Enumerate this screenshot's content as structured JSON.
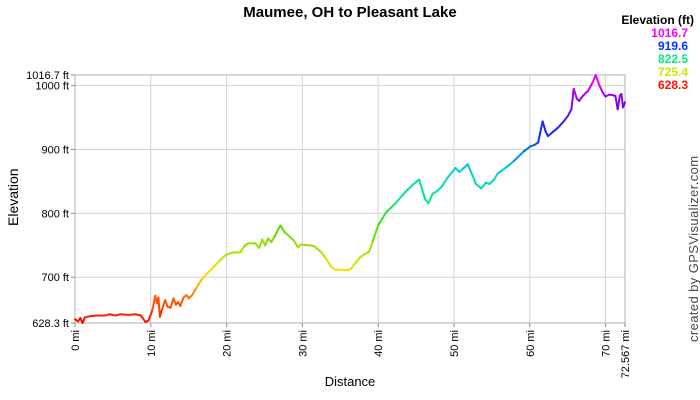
{
  "watermark": {
    "text": "created by GPSVisualizer.com"
  },
  "chart_data": {
    "type": "line",
    "title": "Maumee, OH to Pleasant Lake",
    "xlabel": "Distance",
    "ylabel": "Elevation",
    "x_unit": "mi",
    "y_unit": "ft",
    "xlim": [
      0,
      72.567
    ],
    "ylim": [
      628.3,
      1016.7
    ],
    "grid": true,
    "grid_color": "#d4d4d4",
    "frame_color": "#b0b0b0",
    "tick_color": "#888888",
    "text_color": "#000000",
    "x_ticks": [
      {
        "value": 0,
        "label": "0 mi"
      },
      {
        "value": 10,
        "label": "10 mi"
      },
      {
        "value": 20,
        "label": "20 mi"
      },
      {
        "value": 30,
        "label": "30 mi"
      },
      {
        "value": 40,
        "label": "40 mi"
      },
      {
        "value": 50,
        "label": "50 mi"
      },
      {
        "value": 60,
        "label": "60 mi"
      },
      {
        "value": 70,
        "label": "70 mi"
      },
      {
        "value": 72.567,
        "label": "72.567 mi"
      }
    ],
    "y_ticks": [
      {
        "value": 628.3,
        "label": "628.3 ft"
      },
      {
        "value": 700,
        "label": "700 ft"
      },
      {
        "value": 800,
        "label": "800 ft"
      },
      {
        "value": 900,
        "label": "900 ft"
      },
      {
        "value": 1000,
        "label": "1000 ft"
      },
      {
        "value": 1016.7,
        "label": "1016.7 ft"
      }
    ],
    "legend": {
      "title": "Elevation (ft)",
      "entries": [
        {
          "label": "1016.7",
          "color": "#ff00ff"
        },
        {
          "label": "919.6",
          "color": "#0033ff"
        },
        {
          "label": "822.5",
          "color": "#00ee88"
        },
        {
          "label": "725.4",
          "color": "#cce800"
        },
        {
          "label": "628.3",
          "color": "#ff1100"
        }
      ]
    },
    "color_scale": {
      "description": "elevation-mapped rainbow, low red to high magenta",
      "stops": [
        [
          0.0,
          "#ff0000"
        ],
        [
          0.1,
          "#ff6600"
        ],
        [
          0.2,
          "#ffdd00"
        ],
        [
          0.25,
          "#cce800"
        ],
        [
          0.4,
          "#44dd00"
        ],
        [
          0.5,
          "#00ee88"
        ],
        [
          0.625,
          "#00ccdd"
        ],
        [
          0.75,
          "#0033ff"
        ],
        [
          0.875,
          "#7700ee"
        ],
        [
          1.0,
          "#ff00ff"
        ]
      ]
    },
    "points": [
      [
        0,
        634
      ],
      [
        0.4,
        631
      ],
      [
        0.7,
        636
      ],
      [
        1,
        628.3
      ],
      [
        1.3,
        637
      ],
      [
        2,
        639
      ],
      [
        3,
        640
      ],
      [
        4,
        640
      ],
      [
        4.6,
        642
      ],
      [
        5.3,
        640
      ],
      [
        6,
        642
      ],
      [
        7,
        641
      ],
      [
        8,
        642
      ],
      [
        8.7,
        640
      ],
      [
        9.3,
        630
      ],
      [
        9.7,
        632
      ],
      [
        10.2,
        648
      ],
      [
        10.6,
        671
      ],
      [
        10.8,
        659
      ],
      [
        11,
        668
      ],
      [
        11.2,
        638
      ],
      [
        11.5,
        650
      ],
      [
        11.9,
        664
      ],
      [
        12.2,
        654
      ],
      [
        12.6,
        652
      ],
      [
        13,
        667
      ],
      [
        13.3,
        657
      ],
      [
        13.6,
        661
      ],
      [
        13.9,
        655
      ],
      [
        14.3,
        668
      ],
      [
        14.7,
        672
      ],
      [
        15,
        667
      ],
      [
        15.4,
        671
      ],
      [
        16,
        683
      ],
      [
        16.8,
        698
      ],
      [
        17.6,
        708
      ],
      [
        18.3,
        716
      ],
      [
        19.1,
        726
      ],
      [
        19.8,
        734
      ],
      [
        20.3,
        737
      ],
      [
        21,
        739
      ],
      [
        21.8,
        739
      ],
      [
        22.3,
        748
      ],
      [
        22.8,
        753
      ],
      [
        23.8,
        753
      ],
      [
        24.3,
        746
      ],
      [
        24.7,
        759
      ],
      [
        25.1,
        750
      ],
      [
        25.5,
        761
      ],
      [
        25.9,
        755
      ],
      [
        26.3,
        763
      ],
      [
        27.1,
        781
      ],
      [
        27.7,
        770
      ],
      [
        28.2,
        765
      ],
      [
        28.9,
        757
      ],
      [
        29.4,
        747
      ],
      [
        29.8,
        751
      ],
      [
        30.8,
        750
      ],
      [
        31.5,
        749
      ],
      [
        32.5,
        739
      ],
      [
        33.2,
        728
      ],
      [
        33.8,
        716
      ],
      [
        34.3,
        712
      ],
      [
        35.5,
        711
      ],
      [
        36.3,
        712
      ],
      [
        37,
        722
      ],
      [
        37.6,
        731
      ],
      [
        38.2,
        736
      ],
      [
        38.8,
        740
      ],
      [
        39.3,
        757
      ],
      [
        40,
        781
      ],
      [
        40.6,
        793
      ],
      [
        41,
        801
      ],
      [
        42.3,
        816
      ],
      [
        43.4,
        831
      ],
      [
        44.4,
        843
      ],
      [
        45.4,
        853
      ],
      [
        46.2,
        822
      ],
      [
        46.6,
        816
      ],
      [
        47.2,
        831
      ],
      [
        47.8,
        835
      ],
      [
        48.4,
        842
      ],
      [
        49.1,
        855
      ],
      [
        50.2,
        871
      ],
      [
        50.7,
        865
      ],
      [
        51.3,
        871
      ],
      [
        51.8,
        877
      ],
      [
        52.4,
        861
      ],
      [
        52.9,
        846
      ],
      [
        53.6,
        839
      ],
      [
        54.2,
        848
      ],
      [
        54.7,
        846
      ],
      [
        55.3,
        853
      ],
      [
        55.8,
        863
      ],
      [
        56.9,
        872
      ],
      [
        57.9,
        882
      ],
      [
        59.2,
        897
      ],
      [
        60.1,
        905
      ],
      [
        60.6,
        907
      ],
      [
        61.1,
        911
      ],
      [
        61.7,
        944
      ],
      [
        62.1,
        928
      ],
      [
        62.4,
        921
      ],
      [
        63.1,
        928
      ],
      [
        63.7,
        934
      ],
      [
        64.4,
        943
      ],
      [
        65,
        952
      ],
      [
        65.5,
        963
      ],
      [
        65.8,
        995
      ],
      [
        66.2,
        980
      ],
      [
        66.5,
        976
      ],
      [
        67,
        984
      ],
      [
        67.7,
        992
      ],
      [
        68.3,
        1005
      ],
      [
        68.7,
        1016.7
      ],
      [
        69.2,
        1000
      ],
      [
        69.6,
        990
      ],
      [
        70,
        983
      ],
      [
        70.5,
        986
      ],
      [
        71,
        985
      ],
      [
        71.3,
        984
      ],
      [
        71.6,
        963
      ],
      [
        71.9,
        985
      ],
      [
        72.1,
        987
      ],
      [
        72.3,
        966
      ],
      [
        72.567,
        974
      ]
    ]
  }
}
